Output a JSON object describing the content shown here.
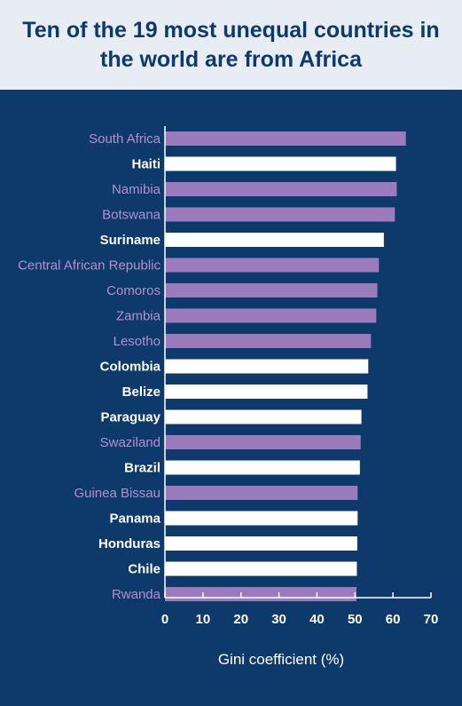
{
  "title": "Ten of the 19 most unequal countries in the world are from Africa",
  "colors": {
    "background": "#0d3a6b",
    "header_background": "#e8ecf3",
    "title_text": "#0d3a6b",
    "africa": "#9b7bbd",
    "other": "#ffffff",
    "africa_label": "#b58fd0",
    "other_label": "#ffffff"
  },
  "chart_data": {
    "type": "bar",
    "orientation": "horizontal",
    "title": "Ten of the 19 most unequal countries in the world are from Africa",
    "xlabel": "Gini coefficient (%)",
    "ylabel": "",
    "xlim": [
      0,
      70
    ],
    "xticks": [
      0,
      10,
      20,
      30,
      40,
      50,
      60,
      70
    ],
    "grid": false,
    "categories": [
      "South Africa",
      "Haiti",
      "Namibia",
      "Botswana",
      "Suriname",
      "Central African Republic",
      "Comoros",
      "Zambia",
      "Lesotho",
      "Colombia",
      "Belize",
      "Paraguay",
      "Swaziland",
      "Brazil",
      "Guinea Bissau",
      "Panama",
      "Honduras",
      "Chile",
      "Rwanda"
    ],
    "values": [
      63.4,
      60.8,
      61.0,
      60.5,
      57.6,
      56.3,
      55.9,
      55.6,
      54.2,
      53.5,
      53.3,
      51.7,
      51.5,
      51.3,
      50.7,
      50.7,
      50.6,
      50.5,
      50.4
    ],
    "group": [
      "africa",
      "other",
      "africa",
      "africa",
      "other",
      "africa",
      "africa",
      "africa",
      "africa",
      "other",
      "other",
      "other",
      "africa",
      "other",
      "africa",
      "other",
      "other",
      "other",
      "africa"
    ]
  }
}
